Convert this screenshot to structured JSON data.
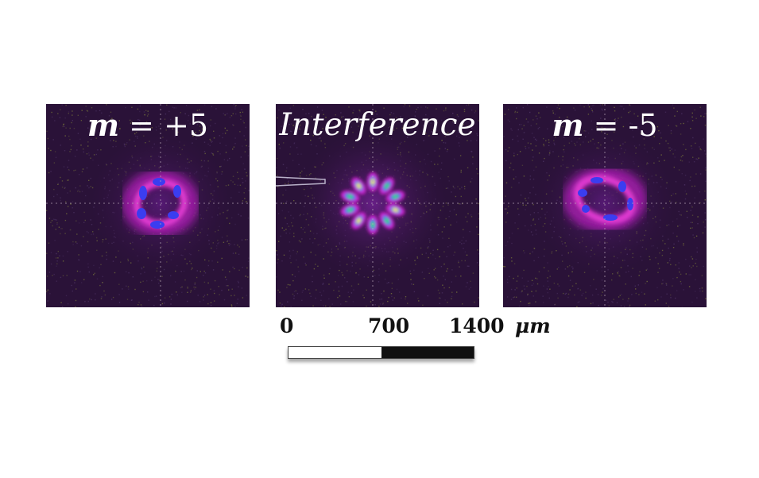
{
  "panels": [
    {
      "title_var": "m",
      "title_rest": " = +5"
    },
    {
      "title": "Interference"
    },
    {
      "title_var": "m",
      "title_rest": " = -5"
    }
  ],
  "scalebar": {
    "labels": [
      "0",
      "700",
      "1400"
    ],
    "unit": "μm"
  }
}
